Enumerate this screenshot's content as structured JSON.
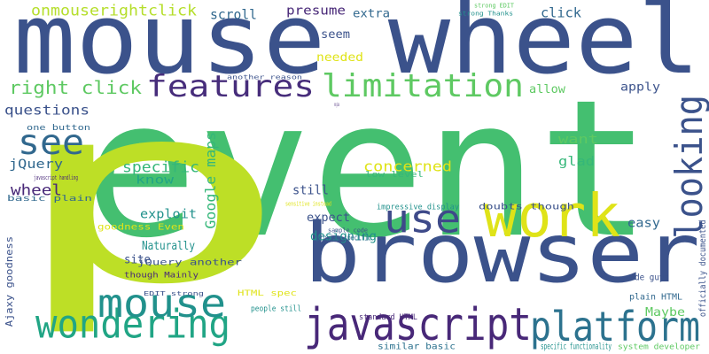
{
  "words": [
    "event",
    "p",
    "mouse wheel",
    "browser",
    "work",
    "javascript",
    "platform",
    "wondering",
    "mouse",
    "use",
    "looking",
    "features",
    "limitation",
    "see",
    "right click",
    "questions",
    "onmouserightclick",
    "scroll",
    "presume",
    "extra",
    "click",
    "seem",
    "needed",
    "allow",
    "apply",
    "Google maps",
    "concerned",
    "specific",
    "know",
    "want",
    "glad",
    "jQuery",
    "wheel",
    "still",
    "exploit",
    "expect",
    "designing",
    "easy",
    "Naturally",
    "site",
    "Maybe",
    "code guys",
    "plain HTML",
    "officially documented",
    "system developer",
    "Ajaxy goodness",
    "strong EDIT",
    "strong Thanks",
    "another reason",
    "wrong places",
    "one button",
    "javascript handling",
    "basic plain",
    "sensitive instead",
    "impressive display",
    "doubts though",
    "low level",
    "sample code",
    "provide specific",
    "goodness Even",
    "jQuery another",
    "though Mainly",
    "EDIT strong",
    "HTML spec",
    "people still",
    "standard HTML",
    "similar basic",
    "specific functionality"
  ]
}
